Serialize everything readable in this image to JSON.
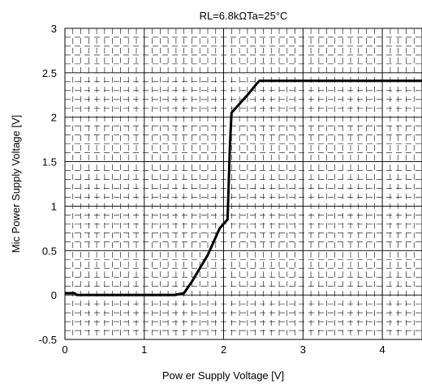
{
  "chart_data": {
    "type": "line",
    "title": "RL=6.8kΩTa=25°C",
    "xlabel": "Pow er Supply Voltage [V]",
    "ylabel": "Mic Power Supply Voltage [V]",
    "xlim": [
      0,
      4.5
    ],
    "ylim": [
      -0.5,
      3
    ],
    "x_ticks": [
      0,
      1,
      2,
      3,
      4
    ],
    "x_tick_labels": [
      "0",
      "1",
      "2",
      "3",
      "4"
    ],
    "y_ticks": [
      -0.5,
      0,
      0.5,
      1,
      1.5,
      2,
      2.5,
      3
    ],
    "y_tick_labels": [
      "-0.5",
      "0",
      "0.5",
      "1",
      "1.5",
      "2",
      "2.5",
      "3"
    ],
    "grid": true,
    "series": [
      {
        "color": "#000000",
        "x": [
          0.0,
          0.12,
          0.15,
          0.5,
          1.0,
          1.38,
          1.5,
          1.6,
          1.8,
          1.95,
          2.05,
          2.08,
          2.1,
          2.3,
          2.42,
          2.45,
          3.0,
          3.5,
          4.0,
          4.5
        ],
        "y": [
          0.02,
          0.02,
          0.0,
          0.0,
          0.0,
          0.0,
          0.02,
          0.15,
          0.45,
          0.75,
          0.85,
          1.7,
          2.05,
          2.25,
          2.38,
          2.41,
          2.41,
          2.41,
          2.41,
          2.41
        ]
      }
    ]
  }
}
